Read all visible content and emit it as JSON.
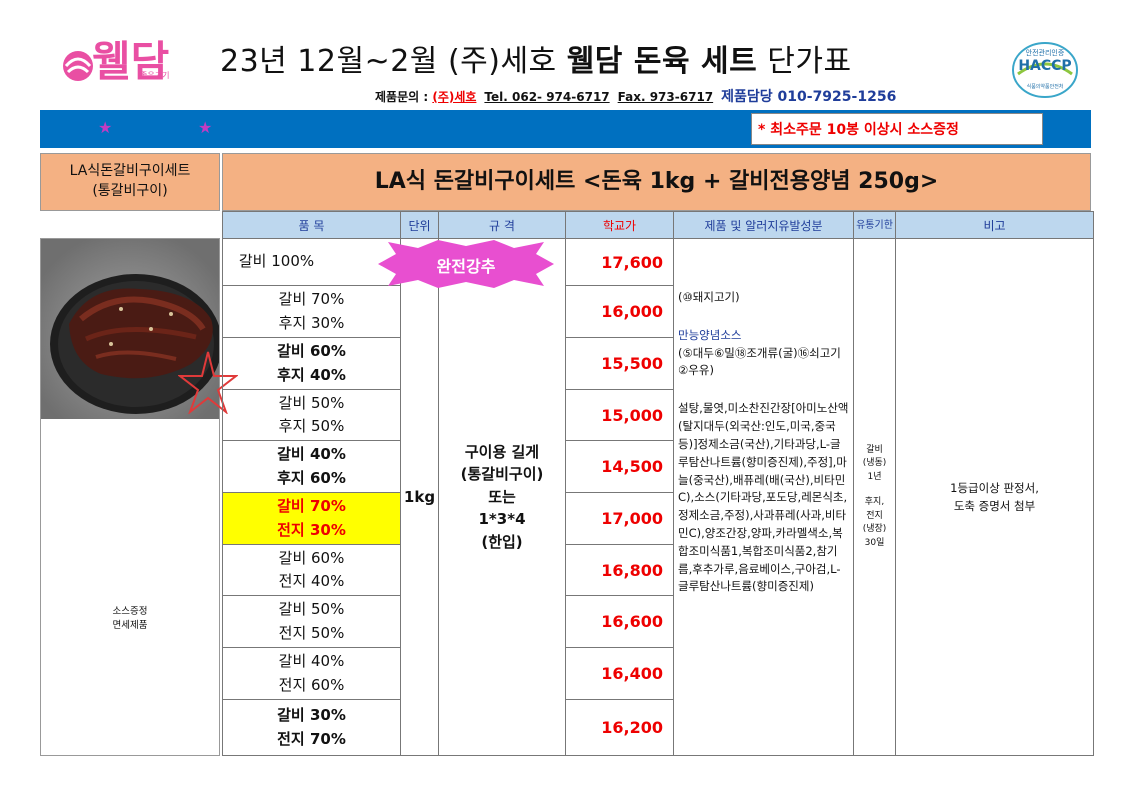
{
  "header": {
    "logo_text": "웰담",
    "logo_small": "좋은고기",
    "title_pre": "23년 12월~2월 (주)세호 ",
    "title_bold": "웰담 돈육 세트",
    "title_post": " 단가표",
    "contact_label": "제품문의 : ",
    "contact_company": "(주)세호",
    "tel": "Tel. 062- 974-6717",
    "fax": "Fax. 973-6717",
    "manager": "제품담당  010-7925-1256",
    "haccp_top": "안전관리인증",
    "haccp_main": "HACCP",
    "haccp_bottom": "식품의약품안전처"
  },
  "banner": {
    "star": "★",
    "notice": "* 최소주문 10봉 이상시 소스증정"
  },
  "set": {
    "left_line1": "LA식돈갈비구이세트",
    "left_line2": "(통갈비구이)",
    "title": "LA식 돈갈비구이세트 <돈육 1kg + 갈비전용양념 250g>",
    "promo_line1": "소스증정",
    "promo_line2": "면세제품",
    "badge": "완전강추"
  },
  "table": {
    "headers": [
      "품    목",
      "단위",
      "규    격",
      "학교가",
      "제품 및 알러지유발성분",
      "유통기한",
      "비고"
    ],
    "rows": [
      {
        "line1": "갈비 100%",
        "line2": "",
        "price": "17,600"
      },
      {
        "line1": "갈비 70%",
        "line2": "후지 30%",
        "price": "16,000"
      },
      {
        "line1": "갈비 60%",
        "line2": "후지 40%",
        "price": "15,500"
      },
      {
        "line1": "갈비 50%",
        "line2": "후지 50%",
        "price": "15,000"
      },
      {
        "line1": "갈비 40%",
        "line2": "후지 60%",
        "price": "14,500"
      },
      {
        "line1": "갈비 70%",
        "line2": "전지 30%",
        "price": "17,000"
      },
      {
        "line1": "갈비 60%",
        "line2": "전지 40%",
        "price": "16,800"
      },
      {
        "line1": "갈비 50%",
        "line2": "전지 50%",
        "price": "16,600"
      },
      {
        "line1": "갈비 40%",
        "line2": "전지 60%",
        "price": "16,400"
      },
      {
        "line1": "갈비 30%",
        "line2": "전지 70%",
        "price": "16,200"
      }
    ],
    "unit": "1kg",
    "spec_lines": [
      "구이용 길게",
      "(통갈비구이)",
      "또는",
      "1*3*4",
      "(한입)"
    ],
    "ingredients": {
      "pork": "(⑩돼지고기)",
      "sauce_title": "만능양념소스",
      "sauce_allergens": "(⑤대두⑥밀⑱조개류(굴)⑯쇠고기②우유)",
      "details": "설탕,물엿,미소찬진간장[아미노산액(탈지대두(외국산:인도,미국,중국등)]정제소금(국산),기타과당,L-글루탐산나트륨(향미증진제),주정],마늘(중국산),배퓨레(배(국산),비타민C),소스(기타과당,포도당,레몬식초,정제소금,주정),사과퓨레(사과,비타민C),양조간장,양파,카라멜색소,복합조미식품1,복합조미식품2,참기름,후추가루,음료베이스,구아검,L-글루탐산나트륨(향미증진제)"
    },
    "shelf_lines": [
      "갈비",
      "(냉동)",
      "1년",
      "",
      "후지,",
      "전지",
      "(냉장)",
      "30일"
    ],
    "note_line1": "1등급이상 판정서,",
    "note_line2": "도축 증명서 첨부"
  }
}
